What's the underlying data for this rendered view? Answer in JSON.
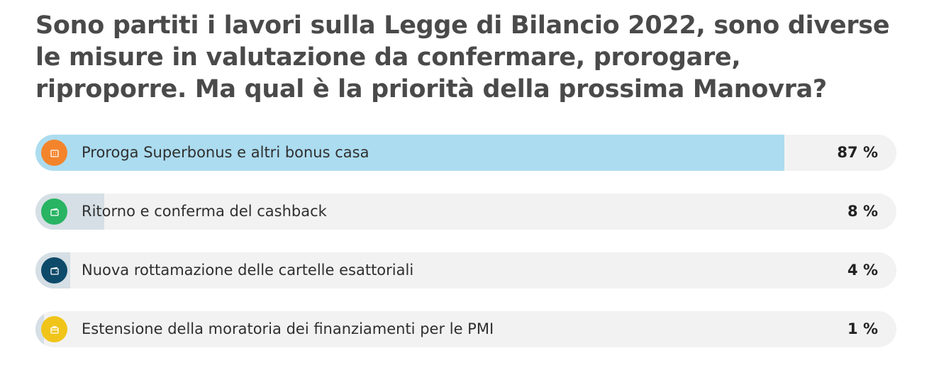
{
  "poll": {
    "question": "Sono partiti i lavori sulla Legge di Bilancio 2022, sono diverse le misure in valutazione da confermare, prorogare, riproporre. Ma qual è la priorità della prossima Manovra?",
    "options": [
      {
        "label": "Proroga Superbonus e altri bonus casa",
        "percent_text": "87 %",
        "percent": 87,
        "bar_color": "#acdcf0",
        "icon": "house-icon",
        "icon_color": "#f4842b"
      },
      {
        "label": "Ritorno e conferma del cashback",
        "percent_text": "8 %",
        "percent": 8,
        "bar_color": "#d5dfe5",
        "icon": "wallet-icon",
        "icon_color": "#28b463"
      },
      {
        "label": "Nuova rottamazione delle cartelle esattoriali",
        "percent_text": "4 %",
        "percent": 4,
        "bar_color": "#d5dfe5",
        "icon": "wallet-icon",
        "icon_color": "#0e4a6a"
      },
      {
        "label": "Estensione della moratoria dei finanziamenti per le PMI",
        "percent_text": "1 %",
        "percent": 1,
        "bar_color": "#d5dfe5",
        "icon": "briefcase-icon",
        "icon_color": "#f0c419"
      }
    ]
  }
}
